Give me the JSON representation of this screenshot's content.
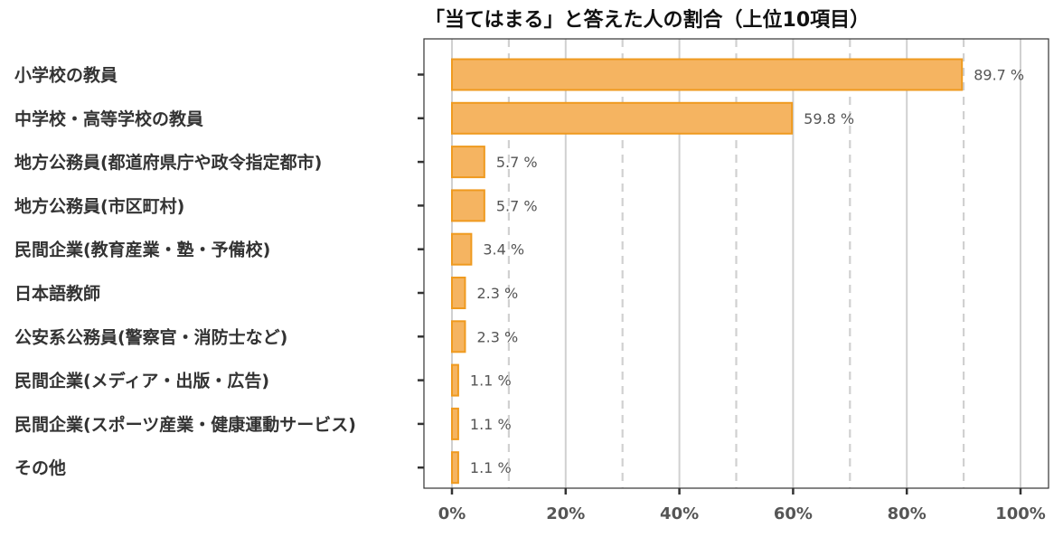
{
  "chart_data": {
    "type": "bar",
    "orientation": "horizontal",
    "title": "「当てはまる」と答えた人の割合（上位10項目）",
    "categories": [
      "小学校の教員",
      "中学校・高等学校の教員",
      "地方公務員(都道府県庁や政令指定都市)",
      "地方公務員(市区町村)",
      "民間企業(教育産業・塾・予備校)",
      "日本語教師",
      "公安系公務員(警察官・消防士など)",
      "民間企業(メディア・出版・広告)",
      "民間企業(スポーツ産業・健康運動サービス)",
      "その他"
    ],
    "values": [
      89.7,
      59.8,
      5.7,
      5.7,
      3.4,
      2.3,
      2.3,
      1.1,
      1.1,
      1.1
    ],
    "value_labels": [
      "89.7 %",
      "59.8 %",
      "5.7 %",
      "5.7 %",
      "3.4 %",
      "2.3 %",
      "2.3 %",
      "1.1 %",
      "1.1 %",
      "1.1 %"
    ],
    "xlim": [
      0,
      100
    ],
    "xticks": [
      0,
      20,
      40,
      60,
      80,
      100
    ],
    "xtick_labels": [
      "0%",
      "20%",
      "40%",
      "60%",
      "80%",
      "100%"
    ],
    "minor_gridlines": [
      10,
      30,
      50,
      70,
      90
    ],
    "grid": true,
    "xlabel": "",
    "ylabel": "",
    "colors": {
      "bar_fill": "#f5b461",
      "bar_stroke": "#ef9a1f",
      "major_grid": "#d0d0d0",
      "minor_grid": "#d0d0d0",
      "axis": "#333333"
    }
  }
}
